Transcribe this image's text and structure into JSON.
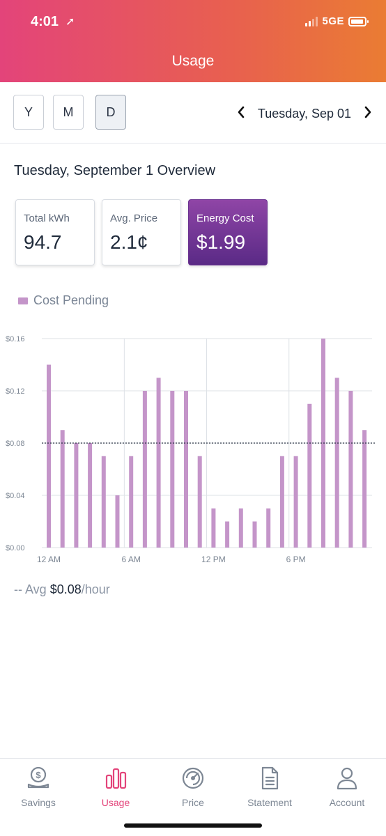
{
  "status_bar": {
    "time": "4:01",
    "location_glyph": "➚",
    "network": "5GE"
  },
  "header": {
    "title": "Usage"
  },
  "period_selector": {
    "options": [
      {
        "label": "Y",
        "active": false
      },
      {
        "label": "M",
        "active": false
      },
      {
        "label": "D",
        "active": true
      }
    ],
    "prev_icon": "chevron-left-icon",
    "next_icon": "chevron-right-icon",
    "date_label": "Tuesday, Sep 01"
  },
  "overview": {
    "title": "Tuesday, September 1 Overview",
    "cards": [
      {
        "label": "Total kWh",
        "value": "94.7"
      },
      {
        "label": "Avg. Price",
        "value": "2.1¢"
      },
      {
        "label": "Energy Cost",
        "value": "$1.99"
      }
    ]
  },
  "legend": {
    "label": "Cost Pending",
    "color": "#c495c9"
  },
  "chart_data": {
    "type": "bar",
    "series": [
      {
        "name": "Cost Pending",
        "values": [
          0.14,
          0.09,
          0.08,
          0.08,
          0.07,
          0.04,
          0.07,
          0.12,
          0.13,
          0.12,
          0.12,
          0.07,
          0.03,
          0.02,
          0.03,
          0.02,
          0.03,
          0.07,
          0.07,
          0.11,
          0.16,
          0.13,
          0.12,
          0.09
        ]
      }
    ],
    "hours": [
      0,
      1,
      2,
      3,
      4,
      5,
      6,
      7,
      8,
      9,
      10,
      11,
      12,
      13,
      14,
      15,
      16,
      17,
      18,
      19,
      20,
      21,
      22,
      23
    ],
    "x_tick_labels": [
      "12 AM",
      "6 AM",
      "12 PM",
      "6 PM"
    ],
    "x_tick_hours": [
      0,
      6,
      12,
      18
    ],
    "y_tick_labels": [
      "$0.00",
      "$0.04",
      "$0.08",
      "$0.12",
      "$0.16"
    ],
    "y_tick_values": [
      0,
      0.04,
      0.08,
      0.12,
      0.16
    ],
    "ylim": [
      0,
      0.16
    ],
    "average": 0.08,
    "grid": true,
    "bar_color": "#c495c9"
  },
  "average_note": {
    "prefix": "-- Avg ",
    "value": "$0.08",
    "suffix": "/hour"
  },
  "tabbar": {
    "items": [
      {
        "label": "Savings",
        "icon": "savings-coin-icon",
        "active": false
      },
      {
        "label": "Usage",
        "icon": "bar-chart-icon",
        "active": true
      },
      {
        "label": "Price",
        "icon": "price-gauge-icon",
        "active": false
      },
      {
        "label": "Statement",
        "icon": "document-icon",
        "active": false
      },
      {
        "label": "Account",
        "icon": "user-icon",
        "active": false
      }
    ]
  },
  "colors": {
    "header_start": "#e3447a",
    "header_end": "#ea7c33",
    "active_tab": "#e3447a",
    "card_accent": "#6a3190"
  }
}
